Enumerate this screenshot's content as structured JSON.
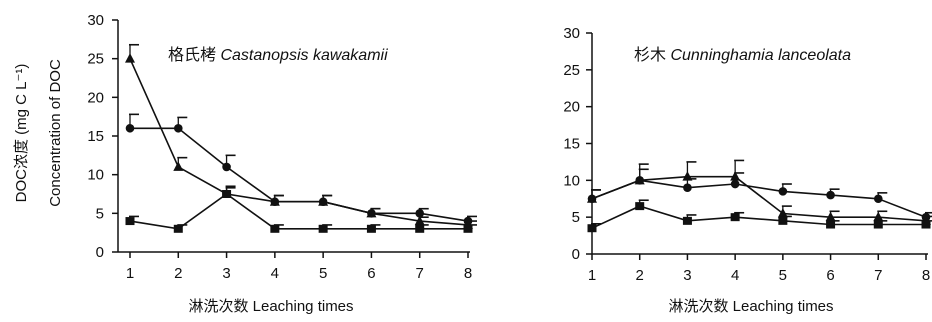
{
  "y_axis_title_line1": "DOC浓度 (mg C L⁻¹)",
  "y_axis_title_line2": "Concentration of DOC",
  "chart_data": [
    {
      "type": "line",
      "title_cn": "格氏栲",
      "title_latin": "Castanopsis kawakamii",
      "xlabel": "淋洗次数 Leaching times",
      "ylabel": "DOC浓度 (mg C L⁻¹) Concentration of DOC",
      "x": [
        1,
        2,
        3,
        4,
        5,
        6,
        7,
        8
      ],
      "xlim": [
        1,
        8
      ],
      "ylim": [
        0,
        30
      ],
      "yticks": [
        0,
        5,
        10,
        15,
        20,
        25,
        30
      ],
      "grid": false,
      "legend": "none",
      "series": [
        {
          "marker": "triangle",
          "values": [
            25,
            11,
            7.5,
            6.5,
            6.5,
            5,
            4,
            3.5
          ],
          "errors": [
            1.8,
            1.2,
            1.0,
            0.8,
            0.8,
            0.6,
            0.5,
            0.5
          ]
        },
        {
          "marker": "circle",
          "values": [
            16,
            16,
            11,
            6.5,
            6.5,
            5,
            5,
            4
          ],
          "errors": [
            1.8,
            1.4,
            1.5,
            0.8,
            0.8,
            0.6,
            0.6,
            0.6
          ]
        },
        {
          "marker": "square",
          "values": [
            4,
            3,
            7.5,
            3,
            3,
            3,
            3,
            3
          ],
          "errors": [
            0.6,
            0.5,
            0.8,
            0.5,
            0.5,
            0.5,
            0.5,
            0.5
          ]
        }
      ]
    },
    {
      "type": "line",
      "title_cn": "杉木",
      "title_latin": "Cunninghamia lanceolata",
      "xlabel": "淋洗次数 Leaching times",
      "ylabel": "",
      "x": [
        1,
        2,
        3,
        4,
        5,
        6,
        7,
        8
      ],
      "xlim": [
        1,
        8
      ],
      "ylim": [
        0,
        30
      ],
      "yticks": [
        0,
        5,
        10,
        15,
        20,
        25,
        30
      ],
      "grid": false,
      "legend": "none",
      "series": [
        {
          "marker": "triangle",
          "values": [
            7.5,
            10,
            10.5,
            10.5,
            5.5,
            5,
            5,
            4.5
          ],
          "errors": [
            1.2,
            2.2,
            2.0,
            2.2,
            1.0,
            0.8,
            0.8,
            0.6
          ]
        },
        {
          "marker": "circle",
          "values": [
            7.5,
            10,
            9,
            9.5,
            8.5,
            8,
            7.5,
            5
          ],
          "errors": [
            1.2,
            1.5,
            1.2,
            1.5,
            1.0,
            0.8,
            0.8,
            0.6
          ]
        },
        {
          "marker": "square",
          "values": [
            3.5,
            6.5,
            4.5,
            5,
            4.5,
            4,
            4,
            4
          ],
          "errors": [
            0.6,
            0.8,
            0.8,
            0.6,
            0.6,
            0.5,
            0.5,
            0.5
          ]
        }
      ]
    }
  ]
}
